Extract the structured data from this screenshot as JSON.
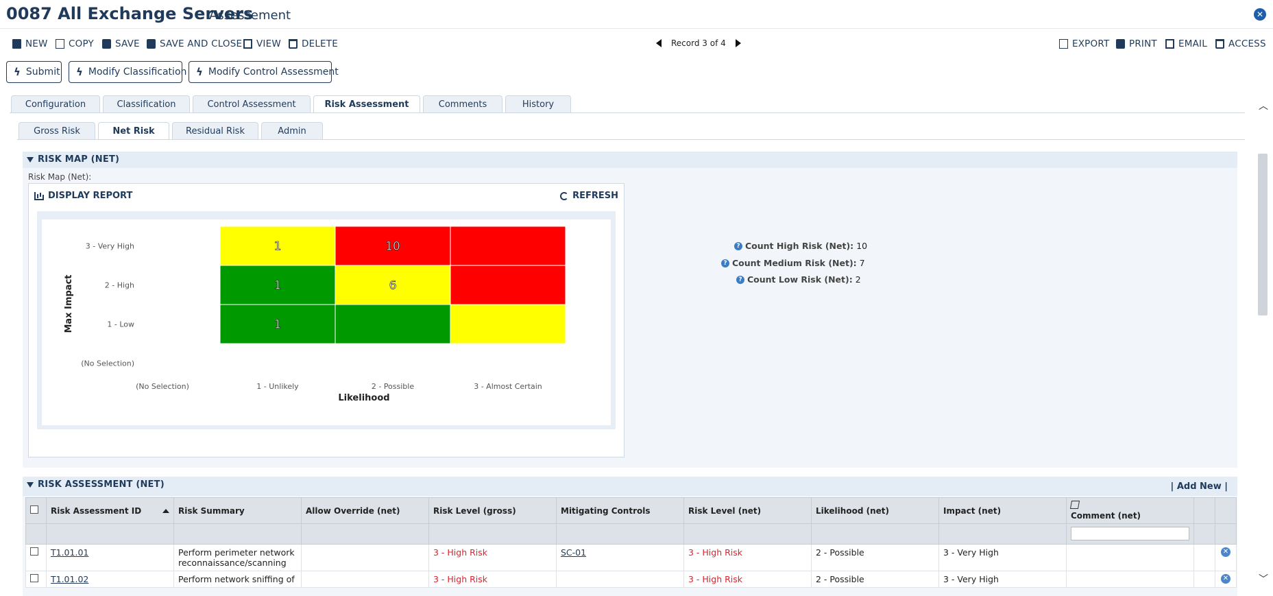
{
  "header": {
    "title": "0087 All Exchange Servers",
    "subtitle": "Assessement"
  },
  "toolbar": {
    "new": "NEW",
    "copy": "COPY",
    "save": "SAVE",
    "save_and_close": "SAVE AND CLOSE",
    "view": "VIEW",
    "delete": "DELETE",
    "record": "Record 3 of 4",
    "export": "EXPORT",
    "print": "PRINT",
    "email": "EMAIL",
    "access": "ACCESS"
  },
  "actions": {
    "submit": "Submit",
    "modify_classification": "Modify Classification",
    "modify_control": "Modify Control Assessment"
  },
  "tabs": [
    "Configuration",
    "Classification",
    "Control Assessment",
    "Risk Assessment",
    "Comments",
    "History"
  ],
  "active_tab": "Risk Assessment",
  "subtabs": [
    "Gross Risk",
    "Net Risk",
    "Residual Risk",
    "Admin"
  ],
  "active_subtab": "Net Risk",
  "risk_map": {
    "section_title": "RISK MAP (NET)",
    "label": "Risk Map (Net):",
    "display_report": "DISPLAY REPORT",
    "refresh": "REFRESH"
  },
  "chart_data": {
    "type": "heatmap",
    "xlabel": "Likelihood",
    "ylabel": "Max Impact",
    "x_categories": [
      "(No Selection)",
      "1 - Unlikely",
      "2 - Possible",
      "3 - Almost Certain"
    ],
    "y_categories": [
      "3 - Very High",
      "2 - High",
      "1 - Low",
      "(No Selection)"
    ],
    "cells": [
      {
        "x": "1 - Unlikely",
        "y": "3 - Very High",
        "color": "#ffff00",
        "value": "1"
      },
      {
        "x": "2 - Possible",
        "y": "3 - Very High",
        "color": "#ff0000",
        "value": "10"
      },
      {
        "x": "3 - Almost Certain",
        "y": "3 - Very High",
        "color": "#ff0000",
        "value": ""
      },
      {
        "x": "1 - Unlikely",
        "y": "2 - High",
        "color": "#009900",
        "value": "1"
      },
      {
        "x": "2 - Possible",
        "y": "2 - High",
        "color": "#ffff00",
        "value": "6"
      },
      {
        "x": "3 - Almost Certain",
        "y": "2 - High",
        "color": "#ff0000",
        "value": ""
      },
      {
        "x": "1 - Unlikely",
        "y": "1 - Low",
        "color": "#009900",
        "value": "1"
      },
      {
        "x": "2 - Possible",
        "y": "1 - Low",
        "color": "#009900",
        "value": ""
      },
      {
        "x": "3 - Almost Certain",
        "y": "1 - Low",
        "color": "#ffff00",
        "value": ""
      }
    ]
  },
  "stats": [
    {
      "label": "Count High Risk (Net):",
      "value": "10"
    },
    {
      "label": "Count Medium Risk (Net):",
      "value": "7"
    },
    {
      "label": "Count Low Risk (Net):",
      "value": "2"
    }
  ],
  "assessment": {
    "section_title": "RISK ASSESSMENT (NET)",
    "add_new": "|  Add New  |",
    "columns": [
      "Risk Assessment ID",
      "Risk Summary",
      "Allow Override (net)",
      "Risk Level (gross)",
      "Mitigating Controls",
      "Risk Level (net)",
      "Likelihood (net)",
      "Impact (net)",
      "Comment (net)"
    ],
    "rows": [
      {
        "id": "T1.01.01",
        "summary": "Perform perimeter network reconnaissance/scanning",
        "override": "",
        "gross": "3 - High Risk",
        "controls": "SC-01",
        "net": "3 - High Risk",
        "likelihood": "2 - Possible",
        "impact": "3 - Very High",
        "comment": ""
      },
      {
        "id": "T1.01.02",
        "summary": "Perform network sniffing of",
        "override": "",
        "gross": "3 - High Risk",
        "controls": "",
        "net": "3 - High Risk",
        "likelihood": "2 - Possible",
        "impact": "3 - Very High",
        "comment": ""
      }
    ]
  }
}
